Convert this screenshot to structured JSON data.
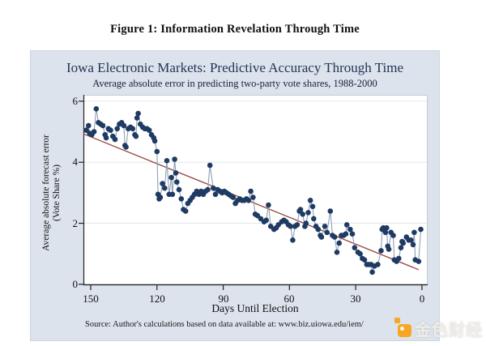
{
  "page": {
    "figure_title": "Figure 1: Information Revelation Through Time"
  },
  "watermark": {
    "text": "金色财经",
    "logo_color": "#F6A723",
    "text_color": "#F2F0EB"
  },
  "chart_data": {
    "type": "scatter",
    "title": "Iowa Electronic Markets: Predictive Accuracy Through Time",
    "subtitle": "Average absolute error in predicting two-party vote shares, 1988-2000",
    "xlabel": "Days Until Election",
    "ylabel_line1": "Average absolute forecast error",
    "ylabel_line2": "(Vote Share %)",
    "source": "Source: Author's calculations based on data available at: www.biz.uiowa.edu/iem/",
    "x_ticks": [
      150,
      120,
      90,
      60,
      30,
      0
    ],
    "y_ticks": [
      0,
      2,
      4,
      6
    ],
    "grid_y": [
      2,
      4,
      6
    ],
    "x_reversed": true,
    "xlim": [
      153.3,
      -2.6
    ],
    "ylim": [
      -0.03,
      6.21
    ],
    "legend": "none",
    "colors": {
      "panel_bg": "#DCE3EC",
      "plot_bg": "#FFFFFF",
      "grid": "#E0E7EF",
      "axis": "#222222",
      "frame": "#C2CBD6",
      "marker": "#1F3A63",
      "connector": "#8FA0B5",
      "trend": "#95463F"
    },
    "trend_line": {
      "from": [
        153.3,
        4.93
      ],
      "to": [
        1.5,
        0.48
      ]
    },
    "series": [
      {
        "name": "Average absolute error",
        "points": [
          [
            152,
            5.05
          ],
          [
            151,
            5.2
          ],
          [
            150.5,
            4.95
          ],
          [
            149.5,
            4.9
          ],
          [
            148.5,
            5.0
          ],
          [
            147.5,
            5.75
          ],
          [
            146.5,
            5.3
          ],
          [
            145.5,
            5.25
          ],
          [
            144.5,
            5.2
          ],
          [
            143.5,
            4.9
          ],
          [
            143,
            4.8
          ],
          [
            142,
            5.1
          ],
          [
            141,
            5.05
          ],
          [
            140,
            4.85
          ],
          [
            139,
            4.75
          ],
          [
            138,
            5.1
          ],
          [
            137,
            5.25
          ],
          [
            136,
            5.3
          ],
          [
            135,
            5.2
          ],
          [
            134.5,
            4.55
          ],
          [
            134,
            4.5
          ],
          [
            133,
            5.1
          ],
          [
            132,
            5.15
          ],
          [
            131,
            5.1
          ],
          [
            130,
            4.9
          ],
          [
            129.5,
            4.85
          ],
          [
            129,
            5.45
          ],
          [
            128.5,
            5.6
          ],
          [
            127.5,
            5.25
          ],
          [
            126.5,
            5.15
          ],
          [
            125.5,
            5.1
          ],
          [
            124.5,
            5.1
          ],
          [
            123.5,
            5.05
          ],
          [
            122.5,
            4.9
          ],
          [
            121.5,
            4.8
          ],
          [
            121,
            4.7
          ],
          [
            120,
            4.35
          ],
          [
            119.5,
            2.95
          ],
          [
            119,
            2.8
          ],
          [
            118.5,
            2.85
          ],
          [
            117.5,
            3.3
          ],
          [
            116.5,
            3.15
          ],
          [
            115.5,
            4.05
          ],
          [
            114.5,
            2.95
          ],
          [
            113.5,
            3.5
          ],
          [
            113,
            2.95
          ],
          [
            112,
            4.1
          ],
          [
            111.5,
            3.65
          ],
          [
            111,
            3.35
          ],
          [
            110,
            3.1
          ],
          [
            109,
            2.8
          ],
          [
            108,
            2.45
          ],
          [
            107,
            2.4
          ],
          [
            106,
            2.65
          ],
          [
            105,
            2.75
          ],
          [
            104,
            2.85
          ],
          [
            103,
            2.95
          ],
          [
            102,
            3.05
          ],
          [
            101,
            2.95
          ],
          [
            100,
            3.05
          ],
          [
            99,
            2.95
          ],
          [
            98,
            3.05
          ],
          [
            97,
            3.1
          ],
          [
            96,
            3.9
          ],
          [
            94.5,
            3.15
          ],
          [
            93.5,
            2.95
          ],
          [
            92.5,
            3.1
          ],
          [
            91.5,
            3.05
          ],
          [
            90.5,
            3.0
          ],
          [
            89.5,
            3.05
          ],
          [
            88.5,
            3.0
          ],
          [
            87.5,
            2.95
          ],
          [
            86.5,
            2.9
          ],
          [
            85.5,
            2.85
          ],
          [
            84.5,
            2.65
          ],
          [
            83.5,
            2.75
          ],
          [
            82.5,
            2.8
          ],
          [
            81.5,
            2.75
          ],
          [
            80.5,
            2.75
          ],
          [
            79.5,
            2.8
          ],
          [
            78.5,
            2.75
          ],
          [
            77.5,
            3.05
          ],
          [
            76.5,
            2.85
          ],
          [
            75.5,
            2.3
          ],
          [
            74.5,
            2.25
          ],
          [
            73,
            2.15
          ],
          [
            71.5,
            2.05
          ],
          [
            70.5,
            2.1
          ],
          [
            69.5,
            2.6
          ],
          [
            68.5,
            1.9
          ],
          [
            67,
            1.8
          ],
          [
            66,
            1.85
          ],
          [
            65,
            1.95
          ],
          [
            63.5,
            2.05
          ],
          [
            62.5,
            2.1
          ],
          [
            61.5,
            2.05
          ],
          [
            60.5,
            1.95
          ],
          [
            59.5,
            1.9
          ],
          [
            58.5,
            1.45
          ],
          [
            57.5,
            1.9
          ],
          [
            56.5,
            1.95
          ],
          [
            55.5,
            2.4
          ],
          [
            55,
            2.45
          ],
          [
            54,
            2.3
          ],
          [
            53,
            1.9
          ],
          [
            52.5,
            2.0
          ],
          [
            51.5,
            2.35
          ],
          [
            50.5,
            2.75
          ],
          [
            49.5,
            2.55
          ],
          [
            49,
            2.15
          ],
          [
            48,
            1.9
          ],
          [
            47,
            1.8
          ],
          [
            46,
            1.6
          ],
          [
            45.5,
            1.55
          ],
          [
            44,
            1.9
          ],
          [
            43,
            1.7
          ],
          [
            41.5,
            2.4
          ],
          [
            40.5,
            1.6
          ],
          [
            39.5,
            1.55
          ],
          [
            38.5,
            1.05
          ],
          [
            37.5,
            1.35
          ],
          [
            36.5,
            1.6
          ],
          [
            35.5,
            1.6
          ],
          [
            34.5,
            1.65
          ],
          [
            34,
            1.95
          ],
          [
            32.5,
            1.8
          ],
          [
            31.5,
            1.65
          ],
          [
            30.5,
            1.2
          ],
          [
            29,
            1.05
          ],
          [
            28,
            1.0
          ],
          [
            27,
            0.85
          ],
          [
            26,
            0.8
          ],
          [
            25,
            0.65
          ],
          [
            24,
            0.65
          ],
          [
            23,
            0.65
          ],
          [
            22.5,
            0.4
          ],
          [
            21.5,
            0.6
          ],
          [
            20,
            0.65
          ],
          [
            18.5,
            1.1
          ],
          [
            18,
            1.8
          ],
          [
            17.5,
            1.85
          ],
          [
            16.5,
            1.7
          ],
          [
            16,
            1.85
          ],
          [
            15.5,
            1.25
          ],
          [
            15,
            1.15
          ],
          [
            14,
            1.7
          ],
          [
            13,
            1.6
          ],
          [
            12.5,
            0.8
          ],
          [
            11.5,
            0.75
          ],
          [
            10.5,
            0.85
          ],
          [
            9.5,
            1.2
          ],
          [
            9,
            1.4
          ],
          [
            8.5,
            1.35
          ],
          [
            7,
            1.55
          ],
          [
            6,
            1.45
          ],
          [
            5,
            1.45
          ],
          [
            4,
            1.3
          ],
          [
            3.5,
            1.7
          ],
          [
            3,
            0.8
          ],
          [
            1.5,
            0.75
          ],
          [
            0.5,
            1.8
          ]
        ]
      }
    ]
  }
}
